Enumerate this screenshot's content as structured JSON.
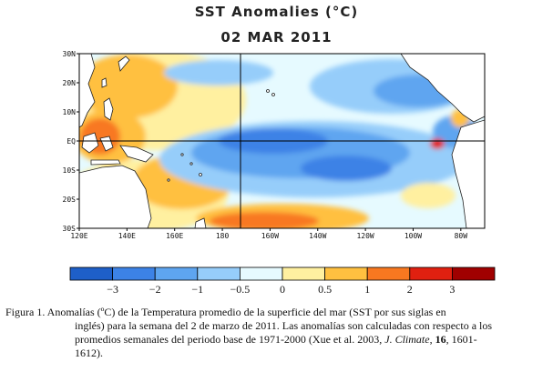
{
  "title": "SST Anomalies (°C)",
  "date": "02 MAR 2011",
  "map": {
    "lat_labels": [
      "30N",
      "20N",
      "10N",
      "EQ",
      "10S",
      "20S",
      "30S"
    ],
    "lon_labels": [
      "120E",
      "140E",
      "160E",
      "180",
      "160W",
      "140W",
      "120W",
      "100W",
      "80W"
    ],
    "extent": {
      "lon": [
        "120E",
        "290E"
      ],
      "lat": [
        "30S",
        "30N"
      ]
    }
  },
  "colorbar": {
    "labels": [
      "−3",
      "−2",
      "−1",
      "−0.5",
      "0",
      "0.5",
      "1",
      "2",
      "3"
    ],
    "colors": [
      "#1e5fc8",
      "#3c82e6",
      "#5ea5f0",
      "#96cdfa",
      "#e6faff",
      "#fff0a0",
      "#ffc040",
      "#f87820",
      "#e02010",
      "#a00000"
    ]
  },
  "caption": {
    "prefix": "Figura 1. Anomalías (ºC) de la Temperatura promedio de la superficie del mar (SST por sus siglas en",
    "line2": "inglés) para la semana del 2 de marzo de 2011.  Las anomalías son calculadas con respecto a los",
    "line3_a": "promedios semanales del periodo base de 1971-2000  (Xue et al. 2003, ",
    "journal": "J. Climate",
    "sep": ", ",
    "volume": "16",
    "line3_b": ", 1601-",
    "line4": "1612)."
  }
}
